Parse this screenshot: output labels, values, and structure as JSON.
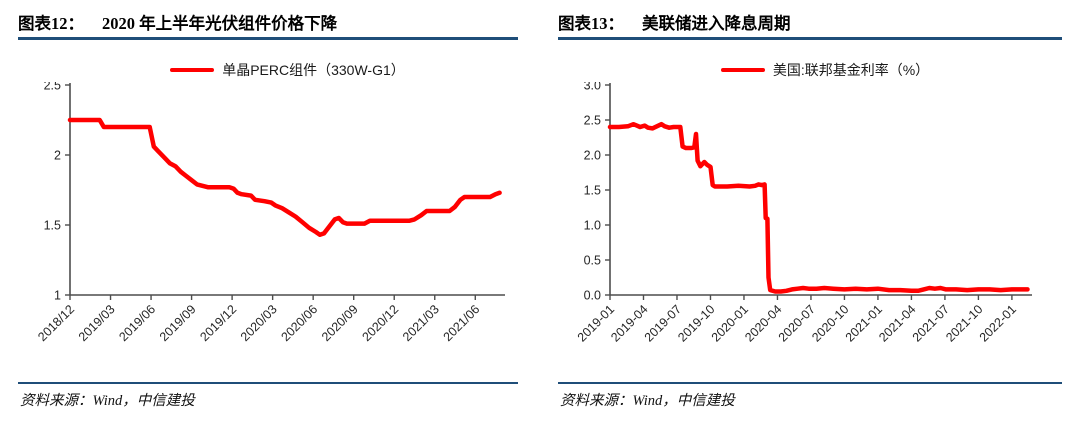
{
  "panels": [
    {
      "figure_label": "图表12：",
      "source": "资料来源：Wind，中信建投"
    },
    {
      "figure_label": "图表13：",
      "source": "资料来源：Wind，中信建投"
    }
  ],
  "colors": {
    "line": "#FF0000",
    "rule": "#1F4E79",
    "axis": "#4D4D4D",
    "tick_label": "#262626"
  },
  "chart_data": [
    {
      "type": "line",
      "title": "2020 年上半年光伏组件价格下降",
      "xlabel": "",
      "ylabel": "",
      "x_unit": "months since 2018/12",
      "xlim": [
        0,
        32.2
      ],
      "ylim": [
        1,
        2.5
      ],
      "grid": false,
      "legend_position": "top",
      "y_ticks": {
        "values": [
          1,
          1.5,
          2,
          2.5
        ],
        "labels": [
          "1",
          "1.5",
          "2",
          "2.5"
        ]
      },
      "x_ticks": {
        "positions": [
          0,
          3,
          6,
          9,
          12,
          15,
          18,
          21,
          24,
          27,
          30
        ],
        "labels": [
          "2018/12",
          "2019/03",
          "2019/06",
          "2019/09",
          "2019/12",
          "2020/03",
          "2020/06",
          "2020/09",
          "2020/12",
          "2021/03",
          "2021/06"
        ]
      },
      "series": [
        {
          "name": "单晶PERC组件（330W-G1）",
          "points": [
            [
              0,
              2.25
            ],
            [
              1,
              2.25
            ],
            [
              2.2,
              2.25
            ],
            [
              2.5,
              2.2
            ],
            [
              4,
              2.2
            ],
            [
              5.9,
              2.2
            ],
            [
              6.2,
              2.06
            ],
            [
              6.5,
              2.03
            ],
            [
              7.0,
              1.98
            ],
            [
              7.4,
              1.94
            ],
            [
              7.8,
              1.92
            ],
            [
              8.2,
              1.88
            ],
            [
              8.6,
              1.85
            ],
            [
              9.0,
              1.82
            ],
            [
              9.4,
              1.79
            ],
            [
              9.8,
              1.78
            ],
            [
              10.2,
              1.77
            ],
            [
              11.8,
              1.77
            ],
            [
              12.1,
              1.76
            ],
            [
              12.4,
              1.73
            ],
            [
              12.7,
              1.72
            ],
            [
              13.4,
              1.71
            ],
            [
              13.7,
              1.68
            ],
            [
              14.4,
              1.67
            ],
            [
              14.9,
              1.66
            ],
            [
              15.2,
              1.64
            ],
            [
              15.7,
              1.62
            ],
            [
              16.2,
              1.59
            ],
            [
              16.7,
              1.56
            ],
            [
              17.2,
              1.52
            ],
            [
              17.7,
              1.48
            ],
            [
              18.2,
              1.45
            ],
            [
              18.5,
              1.43
            ],
            [
              18.8,
              1.44
            ],
            [
              19.2,
              1.49
            ],
            [
              19.6,
              1.54
            ],
            [
              19.9,
              1.55
            ],
            [
              20.2,
              1.52
            ],
            [
              20.5,
              1.51
            ],
            [
              21.8,
              1.51
            ],
            [
              22.2,
              1.53
            ],
            [
              25.1,
              1.53
            ],
            [
              25.5,
              1.54
            ],
            [
              26.0,
              1.57
            ],
            [
              26.4,
              1.6
            ],
            [
              28.1,
              1.6
            ],
            [
              28.5,
              1.63
            ],
            [
              28.9,
              1.68
            ],
            [
              29.2,
              1.7
            ],
            [
              31.1,
              1.7
            ],
            [
              31.5,
              1.72
            ],
            [
              31.8,
              1.73
            ]
          ]
        }
      ]
    },
    {
      "type": "line",
      "title": "美联储进入降息周期",
      "xlabel": "",
      "ylabel": "",
      "x_unit": "months since 2019-01",
      "xlim": [
        0,
        37.8
      ],
      "ylim": [
        0,
        3
      ],
      "grid": false,
      "legend_position": "top",
      "y_ticks": {
        "values": [
          0,
          0.5,
          1,
          1.5,
          2,
          2.5,
          3
        ],
        "labels": [
          "0.0",
          "0.5",
          "1.0",
          "1.5",
          "2.0",
          "2.5",
          "3.0"
        ]
      },
      "x_ticks": {
        "positions": [
          0,
          3,
          6,
          9,
          12,
          15,
          18,
          21,
          24,
          27,
          30,
          33,
          36
        ],
        "labels": [
          "2019-01",
          "2019-04",
          "2019-07",
          "2019-10",
          "2020-01",
          "2020-04",
          "2020-07",
          "2020-10",
          "2021-01",
          "2021-04",
          "2021-07",
          "2021-10",
          "2022-01"
        ]
      },
      "series": [
        {
          "name": "美国:联邦基金利率（%）",
          "points": [
            [
              0,
              2.4
            ],
            [
              0.8,
              2.4
            ],
            [
              1.6,
              2.41
            ],
            [
              2.1,
              2.44
            ],
            [
              2.4,
              2.42
            ],
            [
              2.7,
              2.4
            ],
            [
              3.1,
              2.42
            ],
            [
              3.4,
              2.39
            ],
            [
              3.8,
              2.38
            ],
            [
              4.2,
              2.41
            ],
            [
              4.6,
              2.44
            ],
            [
              4.9,
              2.41
            ],
            [
              5.3,
              2.39
            ],
            [
              5.7,
              2.4
            ],
            [
              6.3,
              2.4
            ],
            [
              6.5,
              2.12
            ],
            [
              6.8,
              2.1
            ],
            [
              7.3,
              2.1
            ],
            [
              7.55,
              2.11
            ],
            [
              7.7,
              2.3
            ],
            [
              7.85,
              1.92
            ],
            [
              8.1,
              1.84
            ],
            [
              8.45,
              1.9
            ],
            [
              8.7,
              1.86
            ],
            [
              9.0,
              1.83
            ],
            [
              9.2,
              1.57
            ],
            [
              9.4,
              1.55
            ],
            [
              10.5,
              1.55
            ],
            [
              11.5,
              1.56
            ],
            [
              12.5,
              1.55
            ],
            [
              13.0,
              1.56
            ],
            [
              13.3,
              1.58
            ],
            [
              13.6,
              1.57
            ],
            [
              13.85,
              1.58
            ],
            [
              13.95,
              1.1
            ],
            [
              14.1,
              1.09
            ],
            [
              14.2,
              0.25
            ],
            [
              14.35,
              0.07
            ],
            [
              14.8,
              0.05
            ],
            [
              15.3,
              0.05
            ],
            [
              15.8,
              0.06
            ],
            [
              16.3,
              0.08
            ],
            [
              16.8,
              0.09
            ],
            [
              17.3,
              0.1
            ],
            [
              17.8,
              0.09
            ],
            [
              18.5,
              0.09
            ],
            [
              19.2,
              0.1
            ],
            [
              20,
              0.09
            ],
            [
              21,
              0.08
            ],
            [
              22,
              0.09
            ],
            [
              23,
              0.08
            ],
            [
              24,
              0.09
            ],
            [
              25,
              0.07
            ],
            [
              26,
              0.07
            ],
            [
              27,
              0.06
            ],
            [
              27.6,
              0.06
            ],
            [
              28.1,
              0.08
            ],
            [
              28.6,
              0.1
            ],
            [
              29.1,
              0.09
            ],
            [
              29.6,
              0.1
            ],
            [
              30.1,
              0.08
            ],
            [
              31,
              0.08
            ],
            [
              32,
              0.07
            ],
            [
              33,
              0.08
            ],
            [
              34,
              0.08
            ],
            [
              35,
              0.07
            ],
            [
              36,
              0.08
            ],
            [
              37,
              0.08
            ],
            [
              37.4,
              0.08
            ]
          ]
        }
      ]
    }
  ]
}
